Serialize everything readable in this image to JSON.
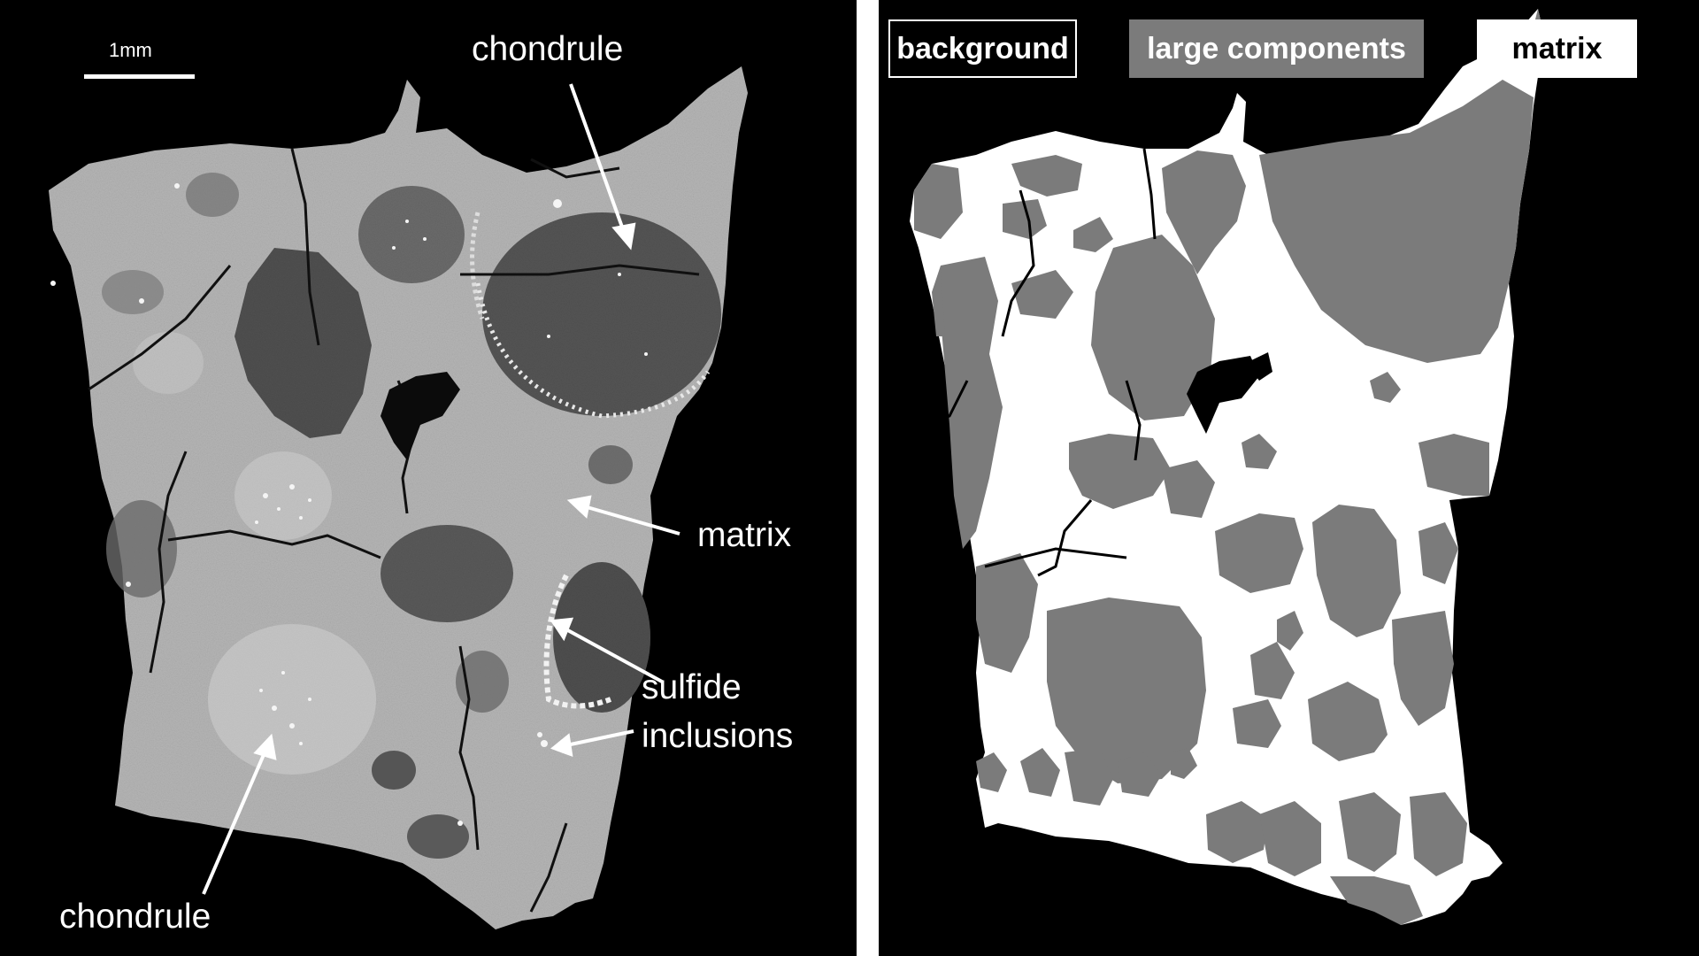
{
  "left": {
    "scale_bar": "1mm",
    "labels": {
      "chondrule_top": "chondrule",
      "matrix": "matrix",
      "sulfide": "sulfide",
      "inclusions": "inclusions",
      "chondrule_bottom": "chondrule"
    }
  },
  "right": {
    "legend": {
      "background": "background",
      "large_components": "large components",
      "matrix": "matrix"
    }
  },
  "colors": {
    "background": "#000000",
    "large_components": "#7b7b7b",
    "matrix": "#ffffff",
    "ct_matrix": "#b4b4b4",
    "ct_chondrule": "#555555"
  }
}
